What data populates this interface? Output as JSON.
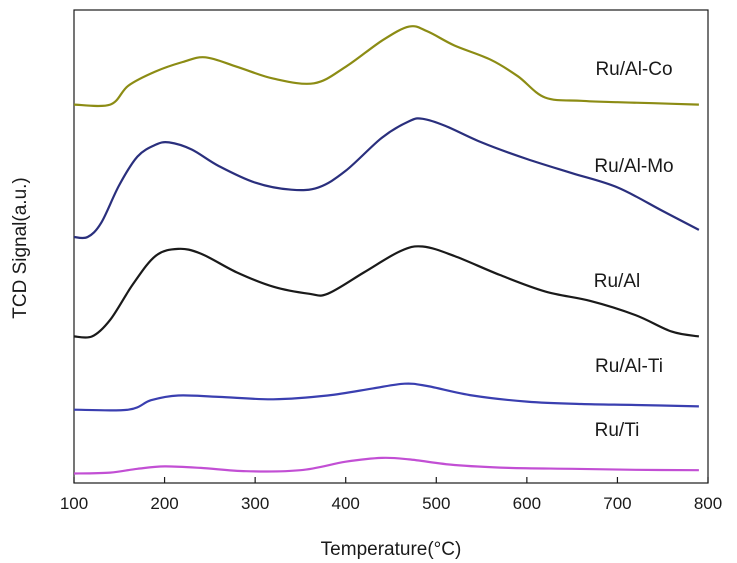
{
  "chart_data": {
    "type": "line",
    "xlabel": "Temperature(°C)",
    "ylabel": "TCD Signal(a.u.)",
    "xlim": [
      100,
      800
    ],
    "xticks": [
      100,
      200,
      300,
      400,
      500,
      600,
      700,
      800
    ],
    "y_ticks_shown": false,
    "grid": false,
    "legend": "labels beside curves, right side",
    "series": [
      {
        "name": "Ru/Al-Co",
        "color": "#8c8c14",
        "points": [
          [
            100,
            0.8
          ],
          [
            140,
            0.8
          ],
          [
            160,
            0.84
          ],
          [
            190,
            0.87
          ],
          [
            220,
            0.89
          ],
          [
            245,
            0.9
          ],
          [
            280,
            0.88
          ],
          [
            320,
            0.855
          ],
          [
            365,
            0.845
          ],
          [
            400,
            0.88
          ],
          [
            440,
            0.935
          ],
          [
            470,
            0.965
          ],
          [
            490,
            0.955
          ],
          [
            520,
            0.925
          ],
          [
            560,
            0.895
          ],
          [
            590,
            0.86
          ],
          [
            620,
            0.815
          ],
          [
            660,
            0.808
          ],
          [
            700,
            0.805
          ],
          [
            740,
            0.803
          ],
          [
            790,
            0.8
          ]
        ]
      },
      {
        "name": "Ru/Al-Mo",
        "color": "#2a2f7d",
        "points": [
          [
            100,
            0.52
          ],
          [
            115,
            0.52
          ],
          [
            130,
            0.55
          ],
          [
            150,
            0.63
          ],
          [
            170,
            0.69
          ],
          [
            190,
            0.715
          ],
          [
            205,
            0.72
          ],
          [
            230,
            0.705
          ],
          [
            260,
            0.67
          ],
          [
            300,
            0.635
          ],
          [
            340,
            0.62
          ],
          [
            370,
            0.625
          ],
          [
            400,
            0.66
          ],
          [
            440,
            0.73
          ],
          [
            470,
            0.765
          ],
          [
            485,
            0.77
          ],
          [
            510,
            0.755
          ],
          [
            550,
            0.72
          ],
          [
            600,
            0.685
          ],
          [
            650,
            0.655
          ],
          [
            700,
            0.625
          ],
          [
            750,
            0.575
          ],
          [
            790,
            0.535
          ]
        ]
      },
      {
        "name": "Ru/Al",
        "color": "#1a1a1a",
        "points": [
          [
            100,
            0.31
          ],
          [
            120,
            0.31
          ],
          [
            140,
            0.345
          ],
          [
            165,
            0.42
          ],
          [
            190,
            0.48
          ],
          [
            215,
            0.495
          ],
          [
            240,
            0.485
          ],
          [
            280,
            0.445
          ],
          [
            320,
            0.415
          ],
          [
            360,
            0.4
          ],
          [
            380,
            0.4
          ],
          [
            420,
            0.445
          ],
          [
            460,
            0.49
          ],
          [
            485,
            0.5
          ],
          [
            520,
            0.48
          ],
          [
            570,
            0.44
          ],
          [
            620,
            0.405
          ],
          [
            670,
            0.385
          ],
          [
            720,
            0.355
          ],
          [
            760,
            0.32
          ],
          [
            790,
            0.31
          ]
        ]
      },
      {
        "name": "Ru/Al-Ti",
        "color": "#3a3fb0",
        "points": [
          [
            100,
            0.155
          ],
          [
            160,
            0.155
          ],
          [
            185,
            0.175
          ],
          [
            215,
            0.185
          ],
          [
            260,
            0.182
          ],
          [
            320,
            0.177
          ],
          [
            380,
            0.185
          ],
          [
            430,
            0.2
          ],
          [
            465,
            0.21
          ],
          [
            490,
            0.205
          ],
          [
            540,
            0.185
          ],
          [
            600,
            0.172
          ],
          [
            660,
            0.167
          ],
          [
            720,
            0.165
          ],
          [
            790,
            0.162
          ]
        ]
      },
      {
        "name": "Ru/Ti",
        "color": "#c24fd4",
        "points": [
          [
            100,
            0.02
          ],
          [
            140,
            0.022
          ],
          [
            170,
            0.03
          ],
          [
            200,
            0.035
          ],
          [
            240,
            0.032
          ],
          [
            290,
            0.025
          ],
          [
            350,
            0.027
          ],
          [
            400,
            0.045
          ],
          [
            440,
            0.053
          ],
          [
            470,
            0.05
          ],
          [
            520,
            0.038
          ],
          [
            580,
            0.032
          ],
          [
            650,
            0.03
          ],
          [
            720,
            0.028
          ],
          [
            790,
            0.027
          ]
        ]
      }
    ]
  }
}
